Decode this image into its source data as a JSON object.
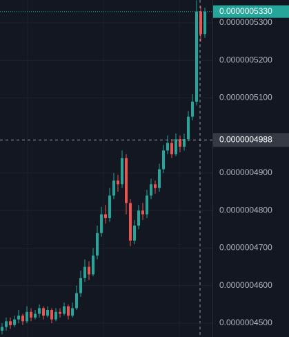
{
  "chart_data": {
    "type": "candlestick",
    "ylim": [
      4.4632e-07,
      5.3608e-07
    ],
    "yticks": [
      {
        "value": 4.5e-07,
        "label": "0.0000004500"
      },
      {
        "value": 4.6e-07,
        "label": "0.0000004600"
      },
      {
        "value": 4.7e-07,
        "label": "0.0000004700"
      },
      {
        "value": 4.8e-07,
        "label": "0.0000004800"
      },
      {
        "value": 4.9e-07,
        "label": "0.0000004900"
      },
      {
        "value": 5.1e-07,
        "label": "0.0000005100"
      },
      {
        "value": 5.2e-07,
        "label": "0.0000005200"
      },
      {
        "value": 5.3e-07,
        "label": "0.0000005300"
      }
    ],
    "grid": true,
    "up_color": "#26a69a",
    "down_color": "#ef5350",
    "open": [
      4.48e-07,
      4.49e-07,
      4.505e-07,
      4.495e-07,
      4.51e-07,
      4.52e-07,
      4.505e-07,
      4.53e-07,
      4.515e-07,
      4.525e-07,
      4.54e-07,
      4.52e-07,
      4.535e-07,
      4.51e-07,
      4.53e-07,
      4.525e-07,
      4.545e-07,
      4.52e-07,
      4.54e-07,
      4.58e-07,
      4.62e-07,
      4.65e-07,
      4.63e-07,
      4.68e-07,
      4.74e-07,
      4.79e-07,
      4.78e-07,
      4.84e-07,
      4.88e-07,
      4.87e-07,
      4.94e-07,
      4.82e-07,
      4.72e-07,
      4.76e-07,
      4.8e-07,
      4.79e-07,
      4.84e-07,
      4.87e-07,
      4.86e-07,
      4.91e-07,
      4.96e-07,
      4.98e-07,
      4.95e-07,
      4.99e-07,
      4.97e-07,
      4.99e-07,
      5.05e-07,
      5.09e-07,
      5.33e-07,
      5.27e-07
    ],
    "high": [
      4.5e-07,
      4.515e-07,
      4.515e-07,
      4.52e-07,
      4.535e-07,
      4.525e-07,
      4.545e-07,
      4.54e-07,
      4.535e-07,
      4.55e-07,
      4.545e-07,
      4.545e-07,
      4.54e-07,
      4.54e-07,
      4.54e-07,
      4.555e-07,
      4.55e-07,
      4.555e-07,
      4.6e-07,
      4.64e-07,
      4.67e-07,
      4.665e-07,
      4.7e-07,
      4.76e-07,
      4.81e-07,
      4.815e-07,
      4.86e-07,
      4.9e-07,
      4.895e-07,
      4.96e-07,
      4.95e-07,
      4.83e-07,
      4.775e-07,
      4.815e-07,
      4.82e-07,
      4.855e-07,
      4.885e-07,
      4.88e-07,
      4.925e-07,
      4.975e-07,
      5e-07,
      4.99e-07,
      5.005e-07,
      5e-07,
      5.005e-07,
      5.065e-07,
      5.11e-07,
      5.36e-07,
      5.345e-07,
      5.34e-07
    ],
    "low": [
      4.47e-07,
      4.48e-07,
      4.485e-07,
      4.49e-07,
      4.5e-07,
      4.495e-07,
      4.5e-07,
      4.505e-07,
      4.51e-07,
      4.515e-07,
      4.51e-07,
      4.515e-07,
      4.5e-07,
      4.505e-07,
      4.515e-07,
      4.52e-07,
      4.51e-07,
      4.515e-07,
      4.535e-07,
      4.57e-07,
      4.61e-07,
      4.615e-07,
      4.625e-07,
      4.67e-07,
      4.73e-07,
      4.765e-07,
      4.77e-07,
      4.83e-07,
      4.85e-07,
      4.86e-07,
      4.79e-07,
      4.705e-07,
      4.71e-07,
      4.75e-07,
      4.775e-07,
      4.78e-07,
      4.83e-07,
      4.845e-07,
      4.85e-07,
      4.9e-07,
      4.95e-07,
      4.94e-07,
      4.945e-07,
      4.955e-07,
      4.96e-07,
      4.985e-07,
      5.04e-07,
      5.08e-07,
      5.25e-07,
      5.26e-07
    ],
    "close": [
      4.49e-07,
      4.505e-07,
      4.495e-07,
      4.51e-07,
      4.52e-07,
      4.505e-07,
      4.53e-07,
      4.515e-07,
      4.525e-07,
      4.54e-07,
      4.52e-07,
      4.535e-07,
      4.51e-07,
      4.53e-07,
      4.525e-07,
      4.545e-07,
      4.52e-07,
      4.54e-07,
      4.58e-07,
      4.62e-07,
      4.65e-07,
      4.63e-07,
      4.68e-07,
      4.74e-07,
      4.79e-07,
      4.78e-07,
      4.84e-07,
      4.88e-07,
      4.87e-07,
      4.94e-07,
      4.82e-07,
      4.72e-07,
      4.76e-07,
      4.8e-07,
      4.79e-07,
      4.84e-07,
      4.87e-07,
      4.86e-07,
      4.91e-07,
      4.96e-07,
      4.98e-07,
      4.95e-07,
      4.99e-07,
      4.97e-07,
      4.99e-07,
      5.05e-07,
      5.09e-07,
      5.33e-07,
      5.27e-07,
      5.33e-07
    ],
    "last_price": {
      "value": 5.33e-07,
      "label": "0.0000005330"
    },
    "crosshair_price": {
      "value": 4.988e-07,
      "label": "0.0000004988"
    }
  }
}
